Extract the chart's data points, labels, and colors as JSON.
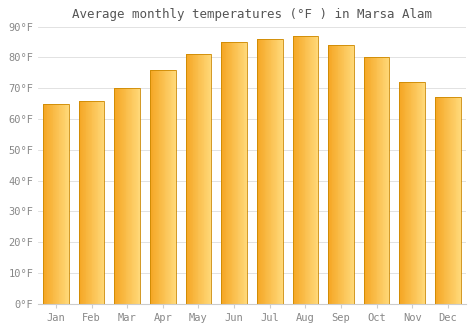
{
  "title": "Average monthly temperatures (°F ) in Marsa Alam",
  "months": [
    "Jan",
    "Feb",
    "Mar",
    "Apr",
    "May",
    "Jun",
    "Jul",
    "Aug",
    "Sep",
    "Oct",
    "Nov",
    "Dec"
  ],
  "values": [
    65,
    66,
    70,
    76,
    81,
    85,
    86,
    87,
    84,
    80,
    72,
    67
  ],
  "bar_color_left": "#F5A623",
  "bar_color_right": "#FFD080",
  "bar_edge_color": "#CC8800",
  "background_color": "#ffffff",
  "plot_bg_color": "#ffffff",
  "grid_color": "#dddddd",
  "ylim": [
    0,
    90
  ],
  "yticks": [
    0,
    10,
    20,
    30,
    40,
    50,
    60,
    70,
    80,
    90
  ],
  "ytick_labels": [
    "0°F",
    "10°F",
    "20°F",
    "30°F",
    "40°F",
    "50°F",
    "60°F",
    "70°F",
    "80°F",
    "90°F"
  ],
  "title_fontsize": 9,
  "tick_fontsize": 7.5,
  "title_color": "#555555",
  "tick_color": "#888888",
  "figsize": [
    4.74,
    3.31
  ],
  "dpi": 100
}
